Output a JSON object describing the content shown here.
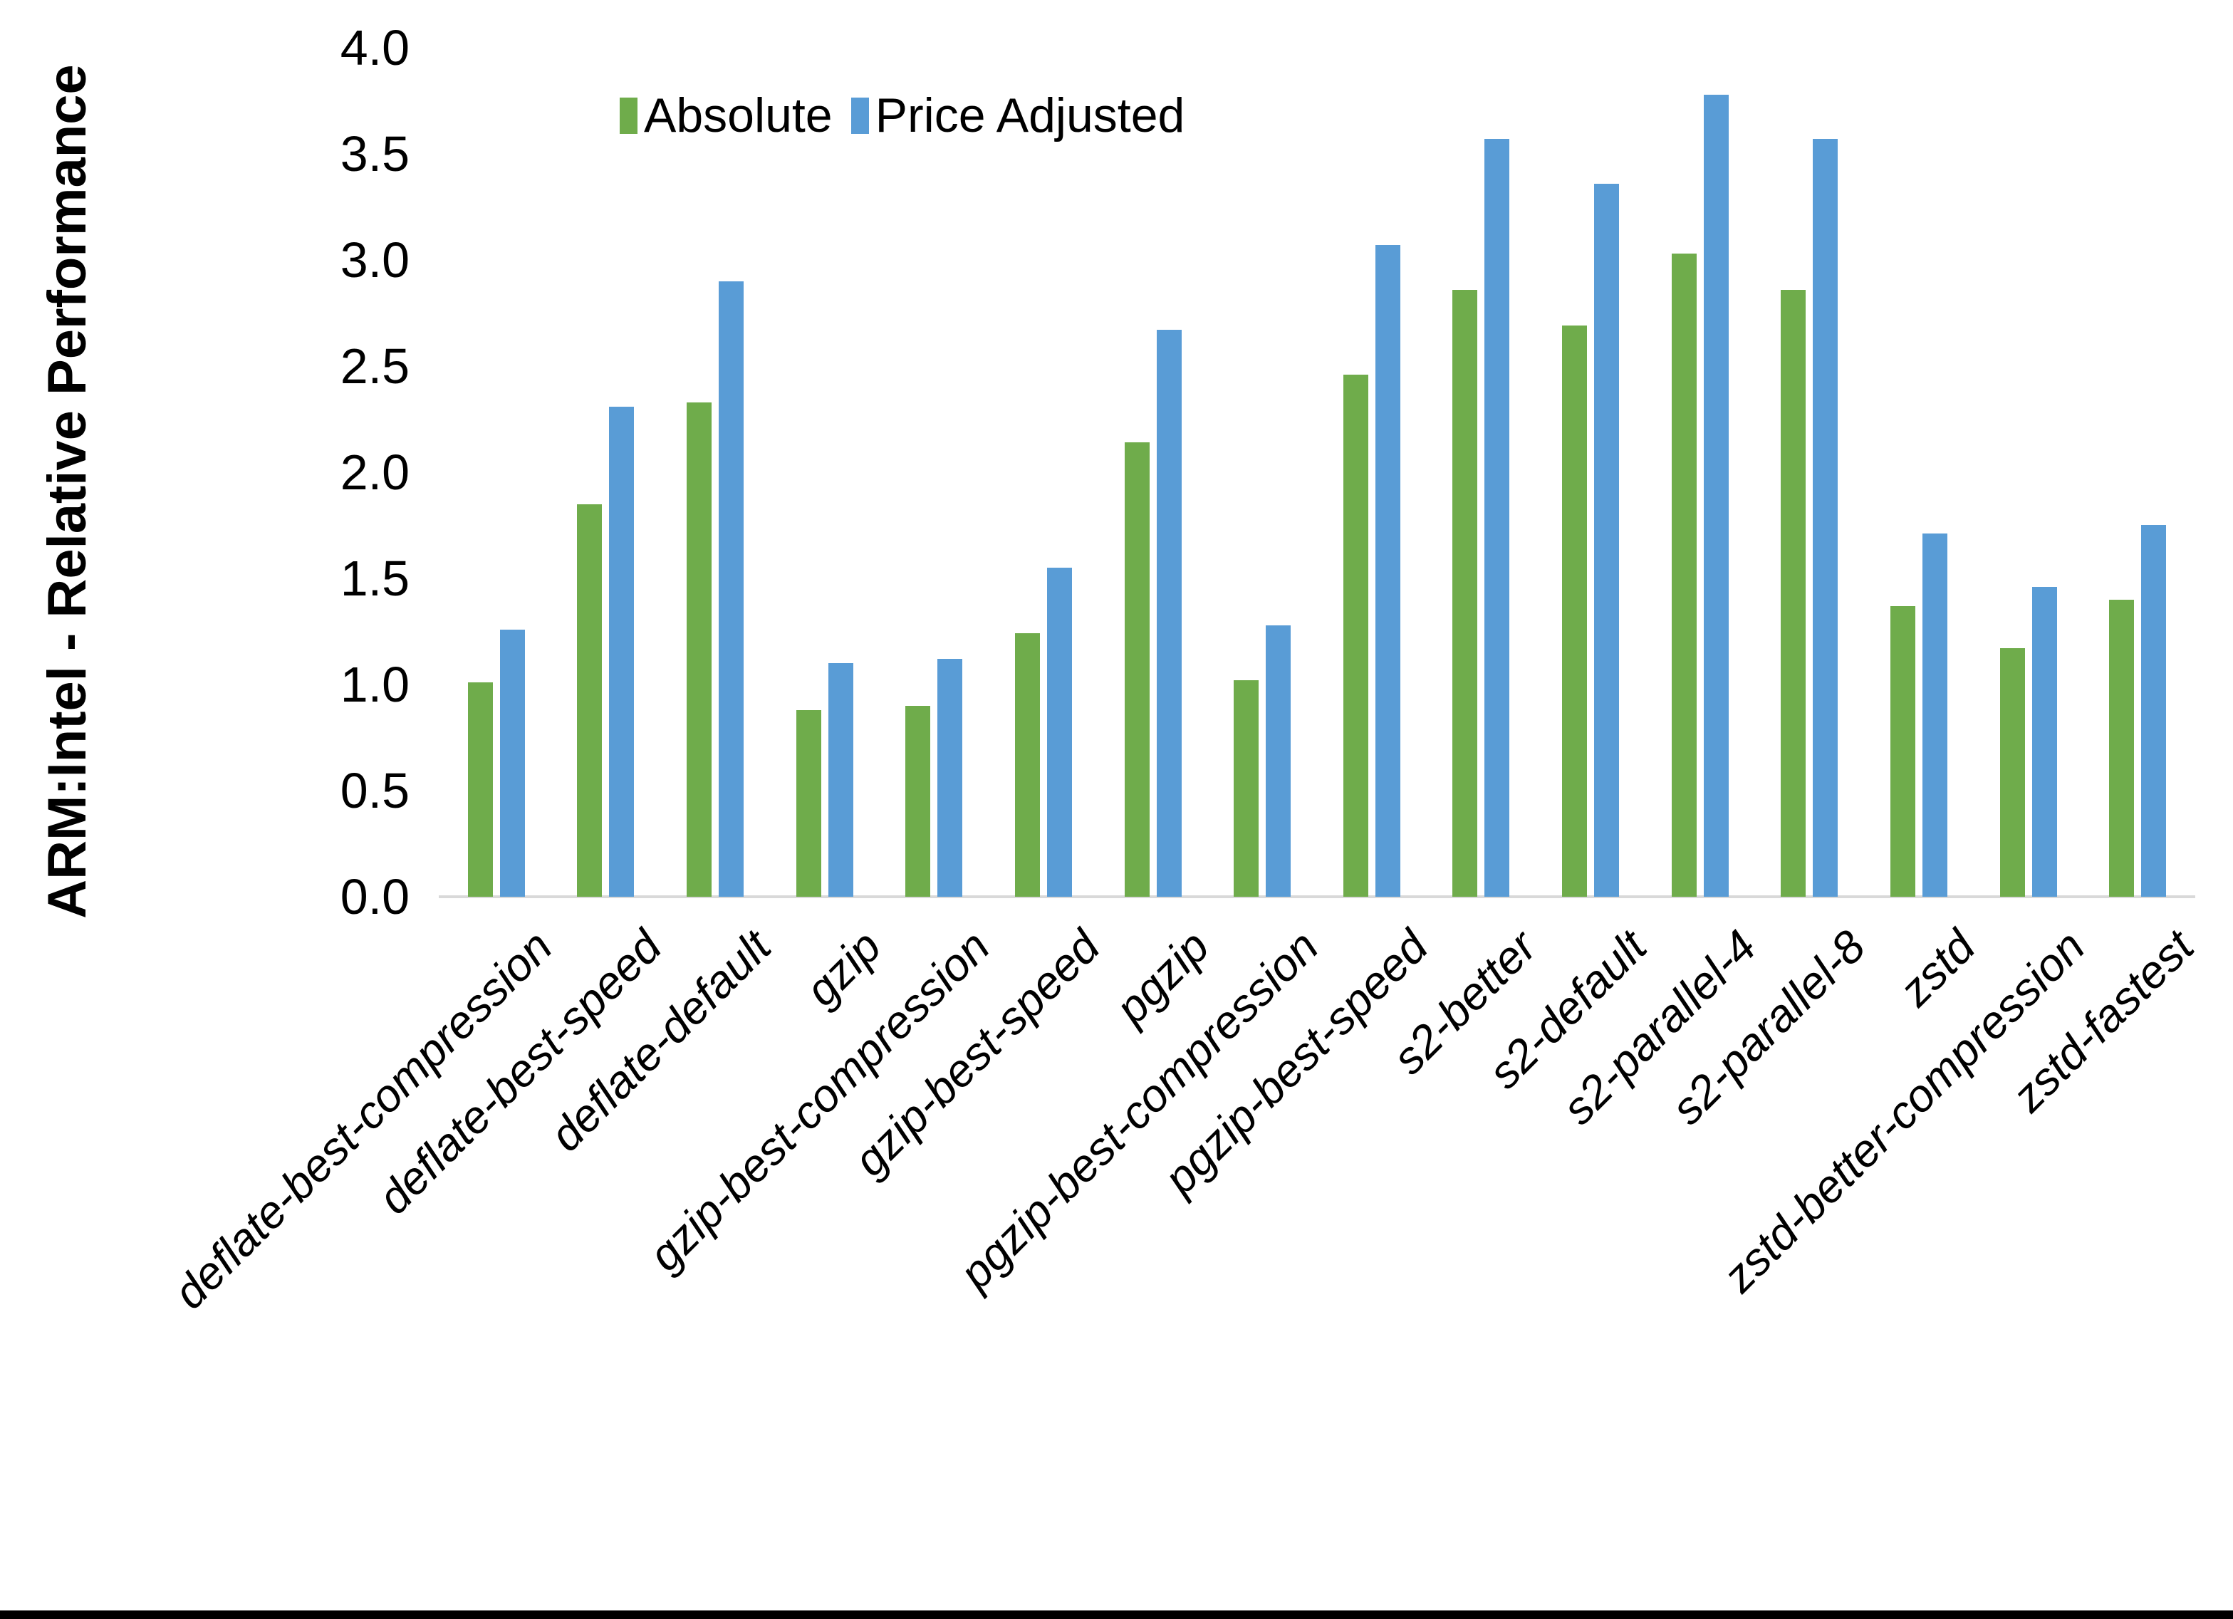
{
  "page": {
    "background": "#ffffff",
    "bottom_border_color": "#000000"
  },
  "chart_data": {
    "type": "bar",
    "title": "",
    "xlabel": "",
    "ylabel": "ARM:Intel - Relative Performance",
    "ylim": [
      0.0,
      4.0
    ],
    "ytick_step": 0.5,
    "ytick_labels": [
      "0.0",
      "0.5",
      "1.0",
      "1.5",
      "2.0",
      "2.5",
      "3.0",
      "3.5",
      "4.0"
    ],
    "grid": false,
    "legend_position": "top-center",
    "axis_line_color": "#D9D9D9",
    "text_color": "#000000",
    "categories": [
      "deflate-best-compression",
      "deflate-best-speed",
      "deflate-default",
      "gzip",
      "gzip-best-compression",
      "gzip-best-speed",
      "pgzip",
      "pgzip-best-compression",
      "pgzip-best-speed",
      "s2-better",
      "s2-default",
      "s2-parallel-4",
      "s2-parallel-8",
      "zstd",
      "zstd-better-compression",
      "zstd-fastest"
    ],
    "series": [
      {
        "name": "Absolute",
        "color": "#6FAC4B",
        "values": [
          1.01,
          1.85,
          2.33,
          0.88,
          0.9,
          1.24,
          2.14,
          1.02,
          2.46,
          2.86,
          2.69,
          3.03,
          2.86,
          1.37,
          1.17,
          1.4
        ]
      },
      {
        "name": "Price Adjusted",
        "color": "#599CD6",
        "values": [
          1.26,
          2.31,
          2.9,
          1.1,
          1.12,
          1.55,
          2.67,
          1.28,
          3.07,
          3.57,
          3.36,
          3.78,
          3.57,
          1.71,
          1.46,
          1.75
        ]
      }
    ]
  }
}
